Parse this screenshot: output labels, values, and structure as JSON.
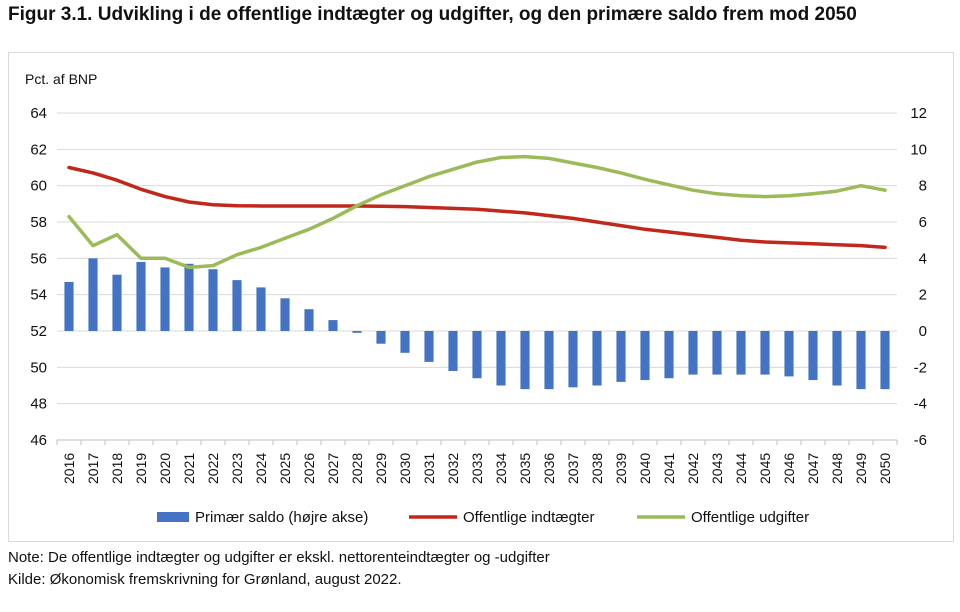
{
  "figure": {
    "title": "Figur 3.1. Udvikling i de offentlige indtægter og udgifter, og den primære saldo frem mod 2050",
    "note": "Note: De offentlige indtægter og udgifter er ekskl. nettorenteindtægter og -udgifter",
    "source": "Kilde: Økonomisk fremskrivning for Grønland, august 2022."
  },
  "colors": {
    "bar": "#4472c4",
    "income_line": "#c0281c",
    "expense_line": "#9bbb59",
    "grid": "#d9d9d9"
  },
  "chart_data": {
    "type": "bar+line",
    "title": "",
    "ylabel": "Pct. af BNP",
    "categories": [
      "2016",
      "2017",
      "2018",
      "2019",
      "2020",
      "2021",
      "2022",
      "2023",
      "2024",
      "2025",
      "2026",
      "2027",
      "2028",
      "2029",
      "2030",
      "2031",
      "2032",
      "2033",
      "2034",
      "2035",
      "2036",
      "2037",
      "2038",
      "2039",
      "2040",
      "2041",
      "2042",
      "2043",
      "2044",
      "2045",
      "2046",
      "2047",
      "2048",
      "2049",
      "2050"
    ],
    "y_left": {
      "min": 46,
      "max": 64,
      "ticks": [
        "64",
        "62",
        "60",
        "58",
        "56",
        "54",
        "52",
        "50",
        "48",
        "46"
      ]
    },
    "y_right": {
      "min": -6,
      "max": 12,
      "ticks": [
        "12",
        "10",
        "8",
        "6",
        "4",
        "2",
        "0",
        "-2",
        "-4",
        "-6"
      ]
    },
    "grid": true,
    "legend_position": "bottom",
    "series": [
      {
        "name": "Primær saldo (højre akse)",
        "type": "bar",
        "axis": "right",
        "values": [
          2.7,
          4.0,
          3.1,
          3.8,
          3.5,
          3.7,
          3.4,
          2.8,
          2.4,
          1.8,
          1.2,
          0.6,
          -0.1,
          -0.7,
          -1.2,
          -1.7,
          -2.2,
          -2.6,
          -3.0,
          -3.2,
          -3.2,
          -3.1,
          -3.0,
          -2.8,
          -2.7,
          -2.6,
          -2.4,
          -2.4,
          -2.4,
          -2.4,
          -2.5,
          -2.7,
          -3.0,
          -3.2,
          -3.2
        ]
      },
      {
        "name": "Offentlige indtægter",
        "type": "line",
        "axis": "left",
        "values": [
          61.0,
          60.7,
          60.3,
          59.8,
          59.4,
          59.1,
          58.95,
          58.9,
          58.88,
          58.88,
          58.88,
          58.88,
          58.88,
          58.87,
          58.85,
          58.8,
          58.75,
          58.7,
          58.6,
          58.5,
          58.35,
          58.2,
          58.0,
          57.8,
          57.6,
          57.45,
          57.3,
          57.15,
          57.0,
          56.9,
          56.85,
          56.8,
          56.75,
          56.7,
          56.6
        ]
      },
      {
        "name": "Offentlige udgifter",
        "type": "line",
        "axis": "left",
        "values": [
          58.3,
          56.7,
          57.3,
          56.0,
          56.0,
          55.5,
          55.6,
          56.2,
          56.6,
          57.1,
          57.6,
          58.2,
          58.9,
          59.5,
          60.0,
          60.5,
          60.9,
          61.3,
          61.55,
          61.6,
          61.5,
          61.25,
          61.0,
          60.7,
          60.35,
          60.05,
          59.75,
          59.55,
          59.45,
          59.4,
          59.45,
          59.55,
          59.7,
          60.0,
          59.75
        ]
      }
    ]
  }
}
